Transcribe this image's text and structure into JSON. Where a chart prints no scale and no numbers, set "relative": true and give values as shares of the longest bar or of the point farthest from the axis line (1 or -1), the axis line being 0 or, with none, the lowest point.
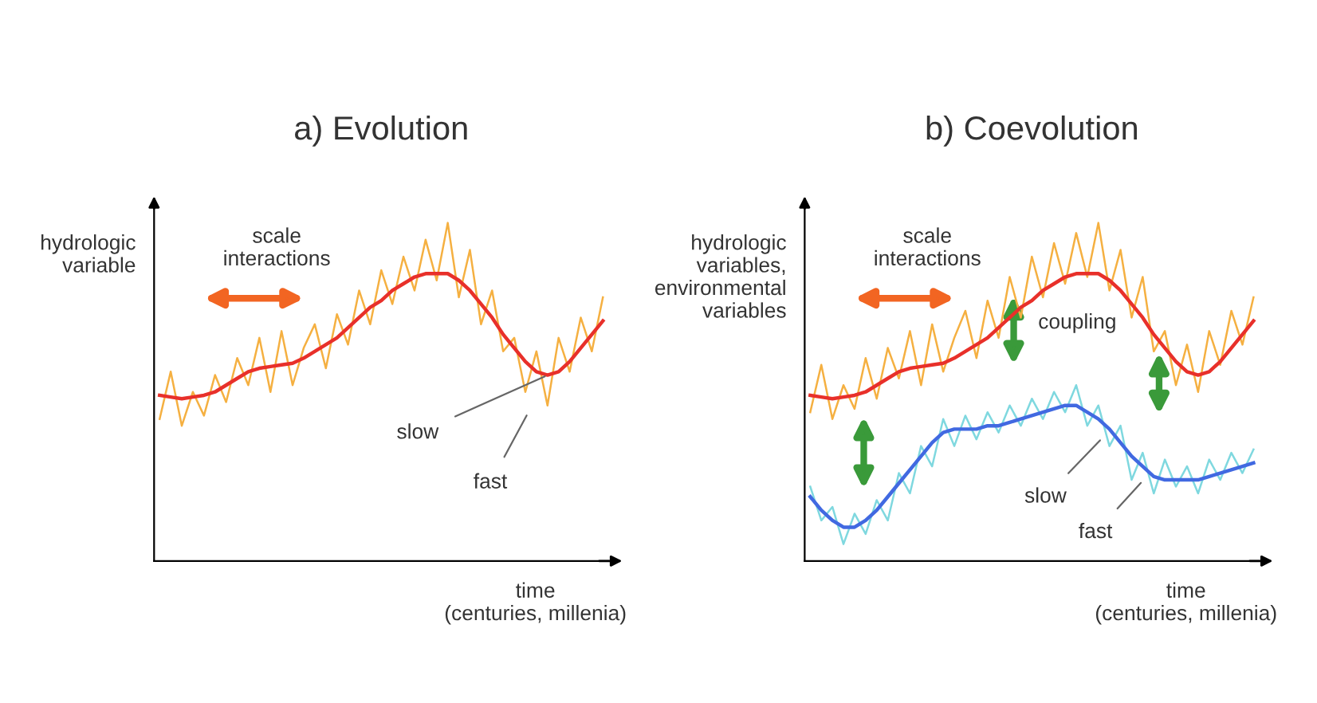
{
  "chart_data": [
    {
      "type": "line",
      "relative": true,
      "title": "a) Evolution",
      "ylabel": "hydrologic\nvariable",
      "xlabel": "time\n(centuries, millenia)",
      "annotations": [
        "scale\ninteractions",
        "slow",
        "fast"
      ],
      "tick_labels": false,
      "categories": [
        null,
        null,
        null,
        null,
        null,
        null,
        null,
        null,
        null,
        null,
        null,
        null,
        null,
        null,
        null,
        null,
        null,
        null,
        null,
        null,
        null,
        null,
        null,
        null,
        null,
        null,
        null,
        null,
        null,
        null,
        null,
        null,
        null,
        null,
        null,
        null,
        null,
        null,
        null,
        null,
        null
      ],
      "series": [
        {
          "color": "#f5b041",
          "values": [
            0.42,
            0.56,
            0.4,
            0.5,
            0.43,
            0.55,
            0.47,
            0.6,
            0.52,
            0.66,
            0.5,
            0.68,
            0.52,
            0.63,
            0.7,
            0.57,
            0.73,
            0.64,
            0.8,
            0.7,
            0.86,
            0.76,
            0.9,
            0.8,
            0.95,
            0.83,
            1.0,
            0.78,
            0.92,
            0.7,
            0.8,
            0.62,
            0.66,
            0.5,
            0.62,
            0.46,
            0.66,
            0.56,
            0.72,
            0.62,
            0.78
          ]
        },
        {
          "color": "#e8302a",
          "values": [
            0.49,
            0.485,
            0.48,
            0.485,
            0.49,
            0.5,
            0.52,
            0.54,
            0.56,
            0.57,
            0.575,
            0.58,
            0.585,
            0.6,
            0.62,
            0.64,
            0.66,
            0.69,
            0.72,
            0.75,
            0.77,
            0.8,
            0.82,
            0.84,
            0.85,
            0.85,
            0.85,
            0.83,
            0.8,
            0.76,
            0.72,
            0.67,
            0.63,
            0.59,
            0.56,
            0.55,
            0.56,
            0.59,
            0.63,
            0.67,
            0.71
          ]
        }
      ]
    },
    {
      "type": "line",
      "relative": true,
      "title": "b) Coevolution",
      "ylabel": "hydrologic\nvariables,\nenvironmental\nvariables",
      "xlabel": "time\n(centuries, millenia)",
      "annotations": [
        "scale\ninteractions",
        "coupling",
        "slow",
        "fast"
      ],
      "tick_labels": false,
      "categories": [
        null,
        null,
        null,
        null,
        null,
        null,
        null,
        null,
        null,
        null,
        null,
        null,
        null,
        null,
        null,
        null,
        null,
        null,
        null,
        null,
        null,
        null,
        null,
        null,
        null,
        null,
        null,
        null,
        null,
        null,
        null,
        null,
        null,
        null,
        null,
        null,
        null,
        null,
        null,
        null,
        null
      ],
      "series": [
        {
          "color": "#f5b041",
          "values": [
            0.44,
            0.58,
            0.42,
            0.52,
            0.45,
            0.6,
            0.48,
            0.63,
            0.54,
            0.68,
            0.52,
            0.7,
            0.56,
            0.66,
            0.74,
            0.6,
            0.77,
            0.66,
            0.84,
            0.72,
            0.9,
            0.78,
            0.94,
            0.82,
            0.97,
            0.84,
            1.0,
            0.8,
            0.92,
            0.72,
            0.84,
            0.62,
            0.68,
            0.52,
            0.64,
            0.5,
            0.68,
            0.58,
            0.74,
            0.64,
            0.78
          ]
        },
        {
          "color": "#e8302a",
          "values": [
            0.49,
            0.485,
            0.48,
            0.485,
            0.49,
            0.5,
            0.52,
            0.54,
            0.56,
            0.57,
            0.575,
            0.58,
            0.585,
            0.6,
            0.62,
            0.64,
            0.66,
            0.69,
            0.72,
            0.75,
            0.77,
            0.8,
            0.82,
            0.84,
            0.85,
            0.85,
            0.85,
            0.83,
            0.8,
            0.76,
            0.72,
            0.67,
            0.63,
            0.59,
            0.56,
            0.55,
            0.56,
            0.59,
            0.63,
            0.67,
            0.71
          ]
        },
        {
          "color": "#7fd8df",
          "values": [
            0.22,
            0.12,
            0.16,
            0.05,
            0.14,
            0.08,
            0.18,
            0.12,
            0.26,
            0.2,
            0.34,
            0.28,
            0.42,
            0.34,
            0.43,
            0.36,
            0.44,
            0.38,
            0.46,
            0.4,
            0.48,
            0.42,
            0.5,
            0.44,
            0.52,
            0.4,
            0.46,
            0.34,
            0.4,
            0.24,
            0.32,
            0.2,
            0.3,
            0.22,
            0.28,
            0.2,
            0.3,
            0.24,
            0.32,
            0.26,
            0.33
          ]
        },
        {
          "color": "#4169e1",
          "values": [
            0.19,
            0.15,
            0.12,
            0.1,
            0.1,
            0.12,
            0.15,
            0.19,
            0.23,
            0.27,
            0.31,
            0.35,
            0.38,
            0.39,
            0.39,
            0.39,
            0.4,
            0.4,
            0.41,
            0.42,
            0.43,
            0.44,
            0.45,
            0.46,
            0.46,
            0.44,
            0.42,
            0.39,
            0.35,
            0.31,
            0.28,
            0.25,
            0.24,
            0.24,
            0.24,
            0.24,
            0.25,
            0.26,
            0.27,
            0.28,
            0.29
          ]
        }
      ]
    }
  ]
}
